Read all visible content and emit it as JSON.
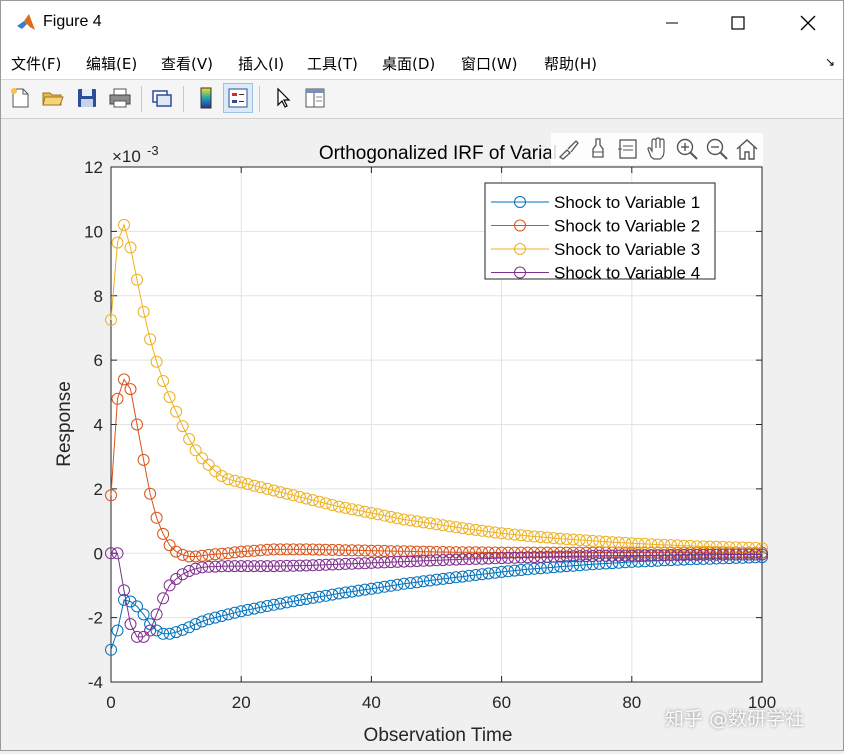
{
  "window": {
    "title": "Figure 4",
    "icons": [
      "matlab-logo-icon",
      "minimize-icon",
      "maximize-icon",
      "close-icon"
    ]
  },
  "menu": {
    "items": [
      "文件(F)",
      "编辑(E)",
      "查看(V)",
      "插入(I)",
      "工具(T)",
      "桌面(D)",
      "窗口(W)",
      "帮助(H)"
    ],
    "dock_glyph": "↘"
  },
  "toolbar": {
    "buttons": [
      "new-figure-icon",
      "open-file-icon",
      "save-icon",
      "print-icon",
      "link-plot-icon",
      "colorbar-icon",
      "legend-icon",
      "pointer-icon",
      "property-editor-icon"
    ]
  },
  "axes_toolbar": {
    "buttons": [
      "brush-icon",
      "data-tips-icon",
      "restore-view-icon",
      "pan-icon",
      "zoom-in-icon",
      "zoom-out-icon",
      "home-icon"
    ]
  },
  "watermark": "知乎 @数研学社",
  "chart_data": {
    "type": "line",
    "title": "Orthogonalized IRF of Varial",
    "xlabel": "Observation Time",
    "ylabel": "Response",
    "y_exponent_label": "×10",
    "y_exponent_power": "-3",
    "xlim": [
      0,
      100
    ],
    "ylim": [
      -4,
      12
    ],
    "xticks": [
      0,
      20,
      40,
      60,
      80,
      100
    ],
    "yticks": [
      -4,
      -2,
      0,
      2,
      4,
      6,
      8,
      10,
      12
    ],
    "grid": true,
    "legend_position": "top-right",
    "marker": "circle",
    "series": [
      {
        "name": "Shock to Variable 1",
        "color": "#0072bd",
        "points": [
          [
            0,
            -3.0
          ],
          [
            1,
            -2.4
          ],
          [
            2,
            -1.45
          ],
          [
            3,
            -1.5
          ],
          [
            4,
            -1.65
          ],
          [
            5,
            -1.9
          ],
          [
            6,
            -2.2
          ],
          [
            7,
            -2.4
          ],
          [
            8,
            -2.5
          ],
          [
            9,
            -2.5
          ],
          [
            10,
            -2.45
          ],
          [
            11,
            -2.38
          ],
          [
            12,
            -2.3
          ],
          [
            13,
            -2.2
          ],
          [
            14,
            -2.12
          ],
          [
            15,
            -2.05
          ],
          [
            18,
            -1.9
          ],
          [
            20,
            -1.8
          ],
          [
            25,
            -1.6
          ],
          [
            30,
            -1.42
          ],
          [
            35,
            -1.25
          ],
          [
            40,
            -1.1
          ],
          [
            45,
            -0.95
          ],
          [
            50,
            -0.82
          ],
          [
            55,
            -0.7
          ],
          [
            60,
            -0.58
          ],
          [
            65,
            -0.48
          ],
          [
            70,
            -0.4
          ],
          [
            75,
            -0.33
          ],
          [
            80,
            -0.27
          ],
          [
            85,
            -0.22
          ],
          [
            90,
            -0.18
          ],
          [
            95,
            -0.15
          ],
          [
            100,
            -0.12
          ]
        ]
      },
      {
        "name": "Shock to Variable 2",
        "color": "#d95319",
        "points": [
          [
            0,
            1.8
          ],
          [
            1,
            4.8
          ],
          [
            2,
            5.4
          ],
          [
            3,
            5.1
          ],
          [
            4,
            4.0
          ],
          [
            5,
            2.9
          ],
          [
            6,
            1.85
          ],
          [
            7,
            1.1
          ],
          [
            8,
            0.6
          ],
          [
            9,
            0.25
          ],
          [
            10,
            0.05
          ],
          [
            11,
            -0.05
          ],
          [
            12,
            -0.1
          ],
          [
            13,
            -0.1
          ],
          [
            14,
            -0.08
          ],
          [
            15,
            -0.05
          ],
          [
            18,
            0.0
          ],
          [
            20,
            0.05
          ],
          [
            25,
            0.12
          ],
          [
            30,
            0.12
          ],
          [
            35,
            0.1
          ],
          [
            40,
            0.08
          ],
          [
            45,
            0.06
          ],
          [
            50,
            0.04
          ],
          [
            55,
            0.03
          ],
          [
            60,
            0.02
          ],
          [
            65,
            0.02
          ],
          [
            70,
            0.02
          ],
          [
            75,
            0.02
          ],
          [
            80,
            0.02
          ],
          [
            85,
            0.02
          ],
          [
            90,
            0.02
          ],
          [
            95,
            0.02
          ],
          [
            100,
            0.02
          ]
        ]
      },
      {
        "name": "Shock to Variable 3",
        "color": "#edb120",
        "points": [
          [
            0,
            7.25
          ],
          [
            1,
            9.65
          ],
          [
            2,
            10.2
          ],
          [
            3,
            9.5
          ],
          [
            4,
            8.5
          ],
          [
            5,
            7.5
          ],
          [
            6,
            6.65
          ],
          [
            7,
            5.95
          ],
          [
            8,
            5.35
          ],
          [
            9,
            4.85
          ],
          [
            10,
            4.4
          ],
          [
            11,
            3.95
          ],
          [
            12,
            3.55
          ],
          [
            13,
            3.2
          ],
          [
            14,
            2.95
          ],
          [
            15,
            2.75
          ],
          [
            16,
            2.55
          ],
          [
            17,
            2.4
          ],
          [
            18,
            2.3
          ],
          [
            20,
            2.2
          ],
          [
            25,
            1.95
          ],
          [
            30,
            1.7
          ],
          [
            35,
            1.45
          ],
          [
            40,
            1.25
          ],
          [
            45,
            1.05
          ],
          [
            50,
            0.9
          ],
          [
            55,
            0.75
          ],
          [
            60,
            0.62
          ],
          [
            65,
            0.52
          ],
          [
            70,
            0.44
          ],
          [
            75,
            0.37
          ],
          [
            80,
            0.31
          ],
          [
            85,
            0.26
          ],
          [
            90,
            0.22
          ],
          [
            95,
            0.19
          ],
          [
            100,
            0.16
          ]
        ]
      },
      {
        "name": "Shock to Variable 4",
        "color": "#7e2f8e",
        "points": [
          [
            0,
            0.0
          ],
          [
            1,
            0.0
          ],
          [
            2,
            -1.15
          ],
          [
            3,
            -2.2
          ],
          [
            4,
            -2.6
          ],
          [
            5,
            -2.6
          ],
          [
            6,
            -2.4
          ],
          [
            7,
            -1.9
          ],
          [
            8,
            -1.4
          ],
          [
            9,
            -1.0
          ],
          [
            10,
            -0.8
          ],
          [
            11,
            -0.65
          ],
          [
            12,
            -0.55
          ],
          [
            13,
            -0.48
          ],
          [
            14,
            -0.44
          ],
          [
            15,
            -0.42
          ],
          [
            18,
            -0.4
          ],
          [
            20,
            -0.4
          ],
          [
            25,
            -0.4
          ],
          [
            30,
            -0.38
          ],
          [
            35,
            -0.34
          ],
          [
            40,
            -0.3
          ],
          [
            45,
            -0.26
          ],
          [
            50,
            -0.22
          ],
          [
            55,
            -0.18
          ],
          [
            60,
            -0.15
          ],
          [
            65,
            -0.12
          ],
          [
            70,
            -0.1
          ],
          [
            75,
            -0.08
          ],
          [
            80,
            -0.07
          ],
          [
            85,
            -0.06
          ],
          [
            90,
            -0.05
          ],
          [
            95,
            -0.04
          ],
          [
            100,
            -0.04
          ]
        ]
      }
    ]
  }
}
